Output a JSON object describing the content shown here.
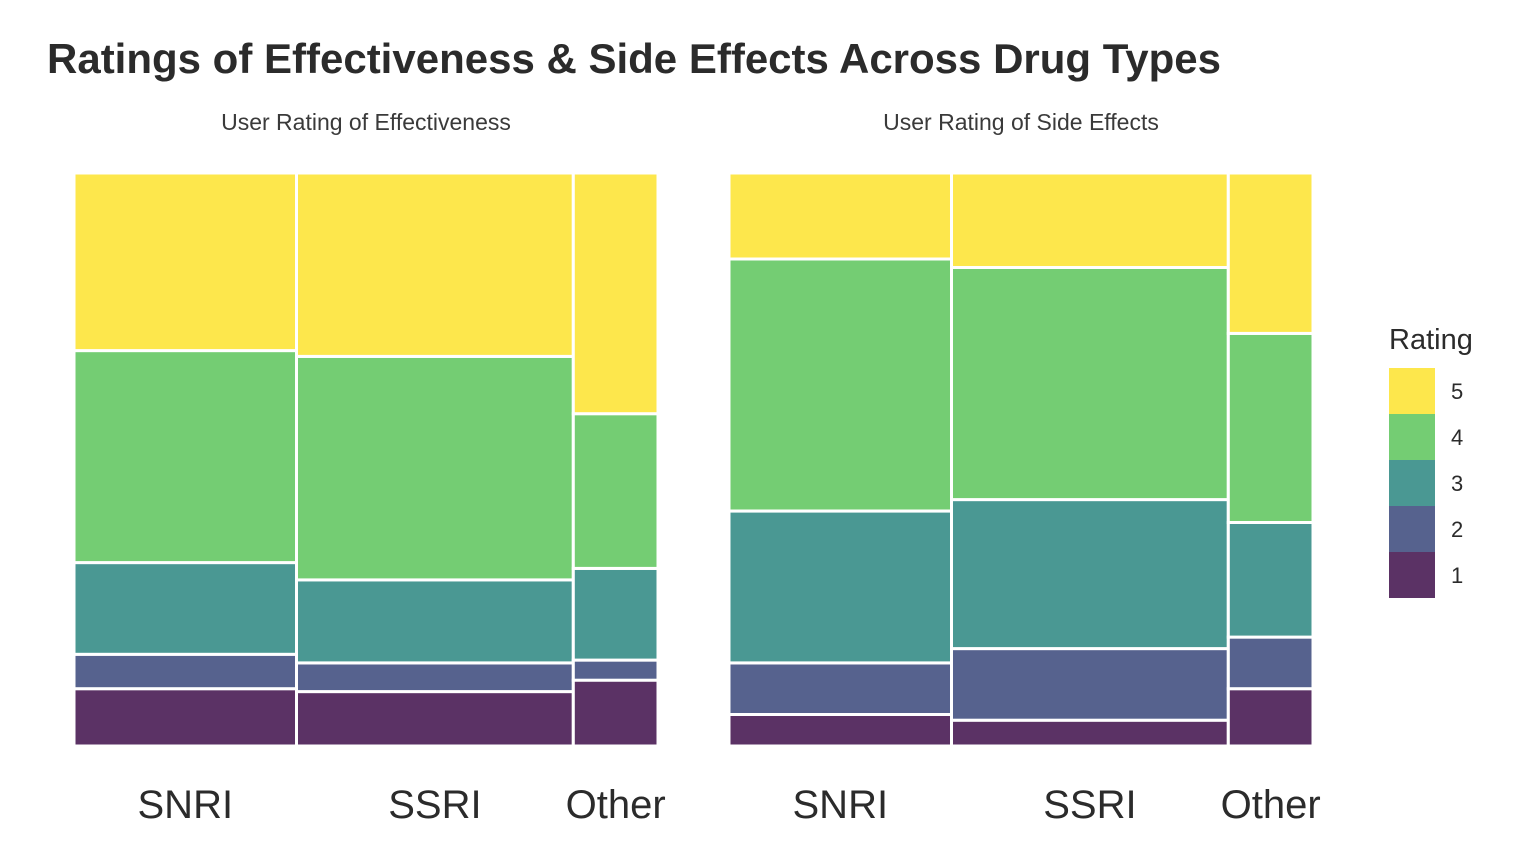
{
  "chart_data": {
    "type": "mosaic",
    "title": "Ratings of Effectiveness & Side Effects Across Drug Types",
    "legend": {
      "title": "Rating",
      "position": "right",
      "levels": [
        "5",
        "4",
        "3",
        "2",
        "1"
      ],
      "colors": {
        "5": "#FDE74C",
        "4": "#74CD73",
        "3": "#4A9893",
        "2": "#56628E",
        "1": "#5B3265"
      }
    },
    "panels": [
      {
        "title": "User Rating of Effectiveness",
        "categories": [
          "SNRI",
          "SSRI",
          "Other"
        ],
        "category_share": [
          0.381,
          0.474,
          0.145
        ],
        "rating_shares": {
          "SNRI": {
            "1": 0.1,
            "2": 0.06,
            "3": 0.16,
            "4": 0.37,
            "5": 0.31
          },
          "SSRI": {
            "1": 0.095,
            "2": 0.05,
            "3": 0.145,
            "4": 0.39,
            "5": 0.32
          },
          "Other": {
            "1": 0.115,
            "2": 0.035,
            "3": 0.16,
            "4": 0.27,
            "5": 0.42
          }
        }
      },
      {
        "title": "User Rating of Side Effects",
        "categories": [
          "SNRI",
          "SSRI",
          "Other"
        ],
        "category_share": [
          0.381,
          0.474,
          0.145
        ],
        "rating_shares": {
          "SNRI": {
            "1": 0.055,
            "2": 0.09,
            "3": 0.265,
            "4": 0.44,
            "5": 0.15
          },
          "SSRI": {
            "1": 0.045,
            "2": 0.125,
            "3": 0.26,
            "4": 0.405,
            "5": 0.165
          },
          "Other": {
            "1": 0.1,
            "2": 0.09,
            "3": 0.2,
            "4": 0.33,
            "5": 0.28
          }
        }
      }
    ]
  }
}
